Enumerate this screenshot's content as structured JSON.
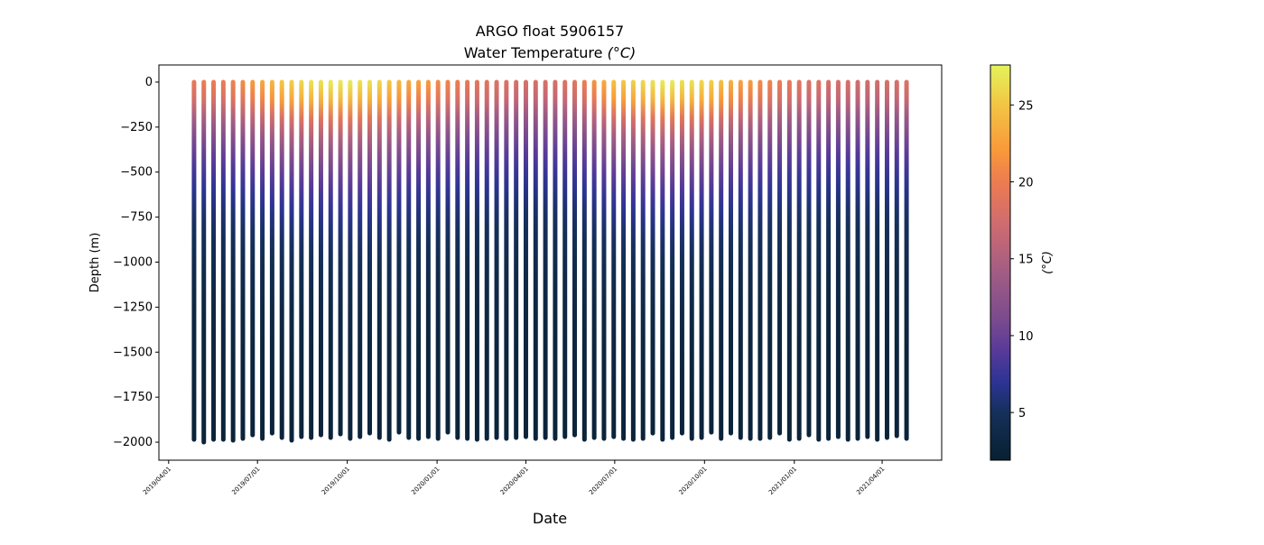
{
  "chart_data": {
    "type": "scatter",
    "title": "ARGO float 5906157",
    "subtitle": "Water Temperature",
    "subtitle_unit_italic": "(°C)",
    "xlabel": "Date",
    "ylabel": "Depth (m)",
    "ylim": [
      -2100,
      95
    ],
    "xlim": [
      "2019-03-22",
      "2021-06-01"
    ],
    "yticks": [
      0,
      -250,
      -500,
      -750,
      -1000,
      -1250,
      -1500,
      -1750,
      -2000
    ],
    "ytick_labels": [
      "0",
      "−250",
      "−500",
      "−750",
      "−1000",
      "−1250",
      "−1500",
      "−1750",
      "−2000"
    ],
    "xticks": [
      "2019-04-01",
      "2019-07-01",
      "2019-10-01",
      "2020-01-01",
      "2020-04-01",
      "2020-07-01",
      "2020-10-01",
      "2021-01-01",
      "2021-04-01"
    ],
    "xtick_labels": [
      "2019/04/01",
      "2019/07/01",
      "2019/10/01",
      "2020/01/01",
      "2020/04/01",
      "2020/07/01",
      "2020/10/01",
      "2021/01/01",
      "2021/04/01"
    ],
    "profiles": {
      "first_date": "2019-04-27",
      "cycle_days": 10,
      "surface_temp_c": [
        19.5,
        20,
        20,
        20,
        20.5,
        21,
        22,
        23,
        24,
        25,
        25.5,
        26,
        26.5,
        26.5,
        27,
        27,
        27,
        26.5,
        26.5,
        26,
        25,
        24,
        23,
        22.5,
        22,
        21,
        20.5,
        20,
        19.5,
        19,
        19,
        18.5,
        18.5,
        18,
        18,
        18,
        18,
        18,
        18.5,
        19,
        20,
        21.5,
        23,
        24.5,
        25,
        25.5,
        26,
        26.5,
        27,
        27,
        26.5,
        26.5,
        26,
        25.5,
        24.5,
        23.5,
        22.5,
        22,
        21,
        20.5,
        20,
        19.5,
        19,
        18.5,
        18.5,
        18,
        18,
        18,
        17.5,
        17.5,
        17.5,
        18,
        18,
        18.5
      ],
      "max_depth_m": [
        -1985,
        -2000,
        -1985,
        -1985,
        -1990,
        -1980,
        -1960,
        -1980,
        -1950,
        -1975,
        -1990,
        -1970,
        -1975,
        -1960,
        -1975,
        -1955,
        -1980,
        -1970,
        -1950,
        -1975,
        -1985,
        -1945,
        -1975,
        -1980,
        -1970,
        -1980,
        -1945,
        -1975,
        -1980,
        -1985,
        -1980,
        -1975,
        -1980,
        -1975,
        -1970,
        -1980,
        -1975,
        -1980,
        -1970,
        -1960,
        -1985,
        -1975,
        -1980,
        -1970,
        -1980,
        -1985,
        -1980,
        -1950,
        -1985,
        -1975,
        -1950,
        -1980,
        -1975,
        -1945,
        -1980,
        -1950,
        -1975,
        -1980,
        -1980,
        -1975,
        -1950,
        -1985,
        -1980,
        -1960,
        -1985,
        -1980,
        -1970,
        -1985,
        -1980,
        -1970,
        -1985,
        -1975,
        -1965,
        -1980
      ]
    },
    "colorbar": {
      "label": "(°C)",
      "range": [
        1.9,
        27.6
      ],
      "ticks": [
        5,
        10,
        15,
        20,
        25
      ],
      "tick_labels": [
        "5",
        "10",
        "15",
        "20",
        "25"
      ],
      "colormap": [
        {
          "t": 1.9,
          "c": "#082030"
        },
        {
          "t": 5,
          "c": "#15305a"
        },
        {
          "t": 7,
          "c": "#2d3495"
        },
        {
          "t": 9,
          "c": "#573a99"
        },
        {
          "t": 11,
          "c": "#7a4a8e"
        },
        {
          "t": 14,
          "c": "#a05c84"
        },
        {
          "t": 17,
          "c": "#cc6a72"
        },
        {
          "t": 20,
          "c": "#ec7c50"
        },
        {
          "t": 22,
          "c": "#f9983a"
        },
        {
          "t": 25,
          "c": "#f2c544"
        },
        {
          "t": 27.6,
          "c": "#e4f45a"
        }
      ]
    }
  }
}
